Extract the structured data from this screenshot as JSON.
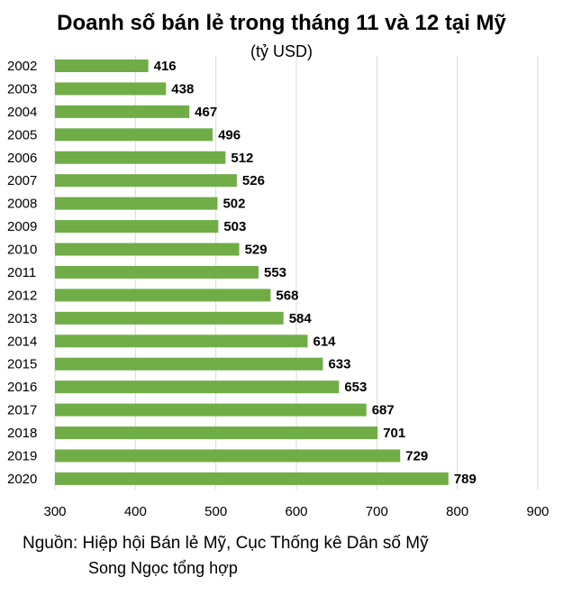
{
  "title": "Doanh số bán lẻ trong tháng 11 và 12 tại Mỹ",
  "unit": "(tỷ USD)",
  "source": "Nguồn: Hiệp hội Bán lẻ Mỹ, Cục Thống kê Dân số Mỹ",
  "credit": "Song Ngọc tổng hợp",
  "colors": {
    "bar": "#70ad47",
    "grid": "#d9d9d9"
  },
  "chart_data": {
    "type": "bar",
    "orientation": "horizontal",
    "title": "Doanh số bán lẻ trong tháng 11 và 12 tại Mỹ",
    "xlabel": "",
    "ylabel": "",
    "xlim": [
      300,
      900
    ],
    "x_ticks": [
      300,
      400,
      500,
      600,
      700,
      800,
      900
    ],
    "grid": true,
    "categories": [
      "2002",
      "2003",
      "2004",
      "2005",
      "2006",
      "2007",
      "2008",
      "2009",
      "2010",
      "2011",
      "2012",
      "2013",
      "2014",
      "2015",
      "2016",
      "2017",
      "2018",
      "2019",
      "2020"
    ],
    "values": [
      416,
      438,
      467,
      496,
      512,
      526,
      502,
      503,
      529,
      553,
      568,
      584,
      614,
      633,
      653,
      687,
      701,
      729,
      789
    ]
  }
}
